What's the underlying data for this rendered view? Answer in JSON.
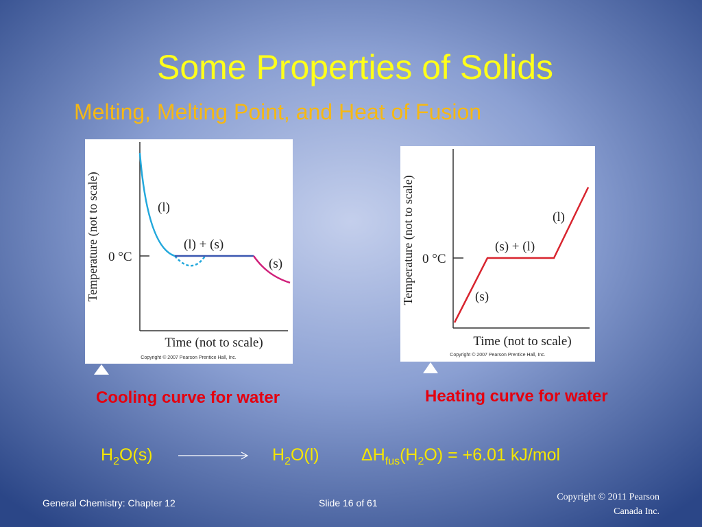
{
  "slide": {
    "title": "Some Properties of Solids",
    "subtitle": "Melting, Melting Point, and Heat of Fusion",
    "cooling_figure": {
      "curve_liquid": "(l)",
      "curve_mixture": "(l) + (s)",
      "curve_solid": "(s)",
      "temperature_mark": "0 °C",
      "y_axis_label": "Temperature (not to scale)",
      "x_axis_label": "Time (not to scale)",
      "copyright": "Copyright © 2007 Pearson Prentice Hall, Inc.",
      "caption": "Cooling curve for water"
    },
    "heating_figure": {
      "curve_liquid": "(l)",
      "curve_mixture": "(s) + (l)",
      "curve_solid": "(s)",
      "temperature_mark": "0 °C",
      "y_axis_label": "Temperature (not to scale)",
      "x_axis_label": "Time (not to scale)",
      "copyright": "Copyright © 2007 Pearson Prentice Hall, Inc.",
      "caption": "Heating curve for water"
    },
    "equation": {
      "reactant": [
        "H",
        "2",
        "O(s)"
      ],
      "product": [
        "H",
        "2",
        "O(l)"
      ],
      "enthalpy": [
        "ΔH",
        "fus",
        "(H",
        "2",
        "O) = +6.01 kJ/mol"
      ]
    },
    "footer": {
      "chapter": "General Chemistry: Chapter 12",
      "slide_number": "Slide 16 of 61",
      "copyright": [
        "Copyright © 2011 Pearson",
        "Canada Inc."
      ]
    }
  }
}
